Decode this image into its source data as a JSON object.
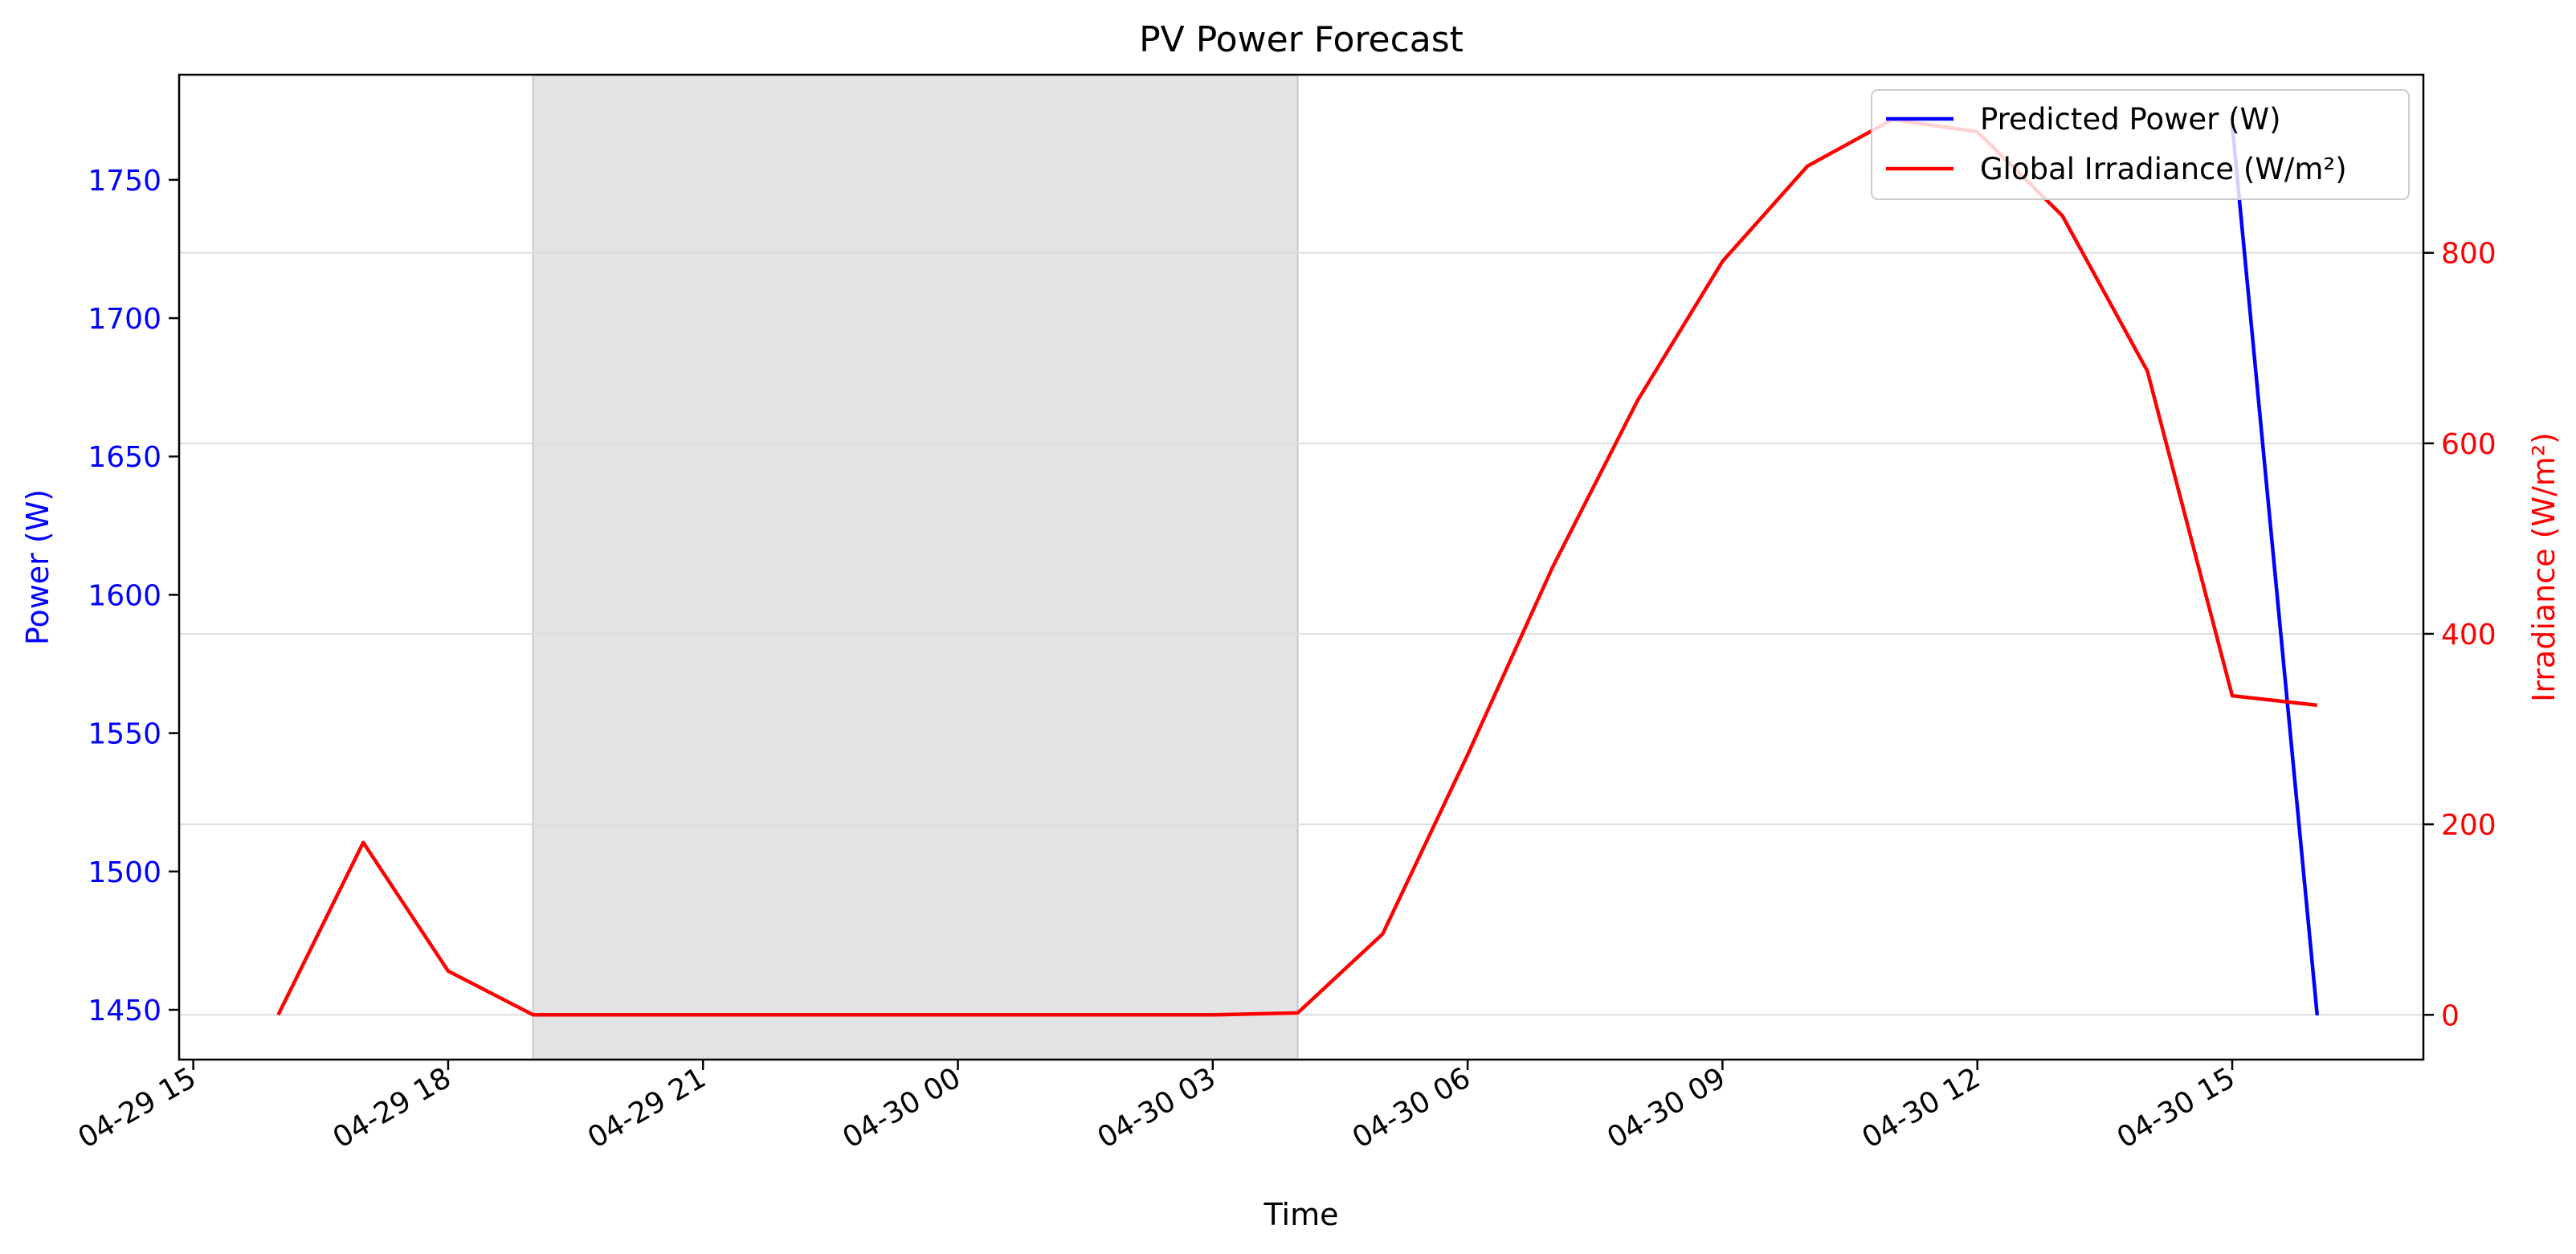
{
  "chart_data": {
    "type": "line",
    "title": "PV Power Forecast",
    "xlabel": "Time",
    "ylabel_left": "Power (W)",
    "ylabel_right": "Irradiance (W/m²)",
    "x_ticks": [
      "04-29 15",
      "04-29 18",
      "04-29 21",
      "04-30 00",
      "04-30 03",
      "04-30 06",
      "04-30 09",
      "04-30 12",
      "04-30 15"
    ],
    "x_range": [
      "2025-04-29 14:50",
      "2025-04-30 17:15"
    ],
    "y_left_ticks": [
      1450,
      1500,
      1550,
      1600,
      1650,
      1700,
      1750
    ],
    "y_left_range": [
      1432,
      1788
    ],
    "y_right_ticks": [
      0,
      200,
      400,
      600,
      800
    ],
    "y_right_range": [
      -47,
      987
    ],
    "shaded_interval": [
      "2025-04-29 19:00",
      "2025-04-30 04:00"
    ],
    "grid": "horizontal",
    "legend_position": "top-right",
    "colors": {
      "power": "#0000ff",
      "irradiance": "#ff0000",
      "shade": "#e3e3e3"
    },
    "series": [
      {
        "name": "Predicted Power (W)",
        "axis": "left",
        "x": [
          "2025-04-30 15:00",
          "2025-04-30 16:00"
        ],
        "values": [
          1770,
          1448
        ]
      },
      {
        "name": "Global Irradiance (W/m²)",
        "axis": "right",
        "x": [
          "2025-04-29 16:00",
          "2025-04-29 17:00",
          "2025-04-29 18:00",
          "2025-04-29 19:00",
          "2025-04-29 20:00",
          "2025-04-29 21:00",
          "2025-04-29 22:00",
          "2025-04-29 23:00",
          "2025-04-30 00:00",
          "2025-04-30 01:00",
          "2025-04-30 02:00",
          "2025-04-30 03:00",
          "2025-04-30 04:00",
          "2025-04-30 05:00",
          "2025-04-30 06:00",
          "2025-04-30 07:00",
          "2025-04-30 08:00",
          "2025-04-30 09:00",
          "2025-04-30 10:00",
          "2025-04-30 11:00",
          "2025-04-30 12:00",
          "2025-04-30 13:00",
          "2025-04-30 14:00",
          "2025-04-30 15:00",
          "2025-04-30 16:00"
        ],
        "values": [
          0,
          181,
          46,
          0,
          0,
          0,
          0,
          0,
          0,
          0,
          0,
          0,
          2,
          85,
          273,
          470,
          645,
          791,
          891,
          940,
          927,
          839,
          676,
          335,
          325
        ]
      }
    ]
  }
}
